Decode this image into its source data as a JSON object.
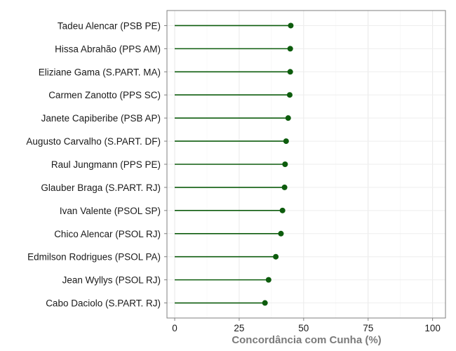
{
  "chart_data": {
    "type": "lollipop",
    "title": "",
    "xlabel": "Concordância com Cunha (%)",
    "ylabel": "",
    "xlim": [
      -3,
      105
    ],
    "x_ticks": [
      0,
      25,
      50,
      75,
      100
    ],
    "grid": true,
    "legend": "none",
    "color": "#0d5c0d",
    "categories": [
      "Tadeu Alencar (PSB PE)",
      "Hissa Abrahão (PPS AM)",
      "Eliziane Gama (S.PART. MA)",
      "Carmen Zanotto (PPS SC)",
      "Janete Capiberibe (PSB AP)",
      "Augusto Carvalho (S.PART. DF)",
      "Raul Jungmann (PPS PE)",
      "Glauber Braga (S.PART. RJ)",
      "Ivan Valente (PSOL SP)",
      "Chico Alencar (PSOL RJ)",
      "Edmilson Rodrigues (PSOL PA)",
      "Jean Wyllys (PSOL RJ)",
      "Cabo Daciolo (S.PART. RJ)"
    ],
    "values": [
      45,
      44.8,
      44.8,
      44.6,
      44.0,
      43.2,
      42.8,
      42.6,
      41.8,
      41.2,
      39.2,
      36.4,
      35.0
    ]
  }
}
